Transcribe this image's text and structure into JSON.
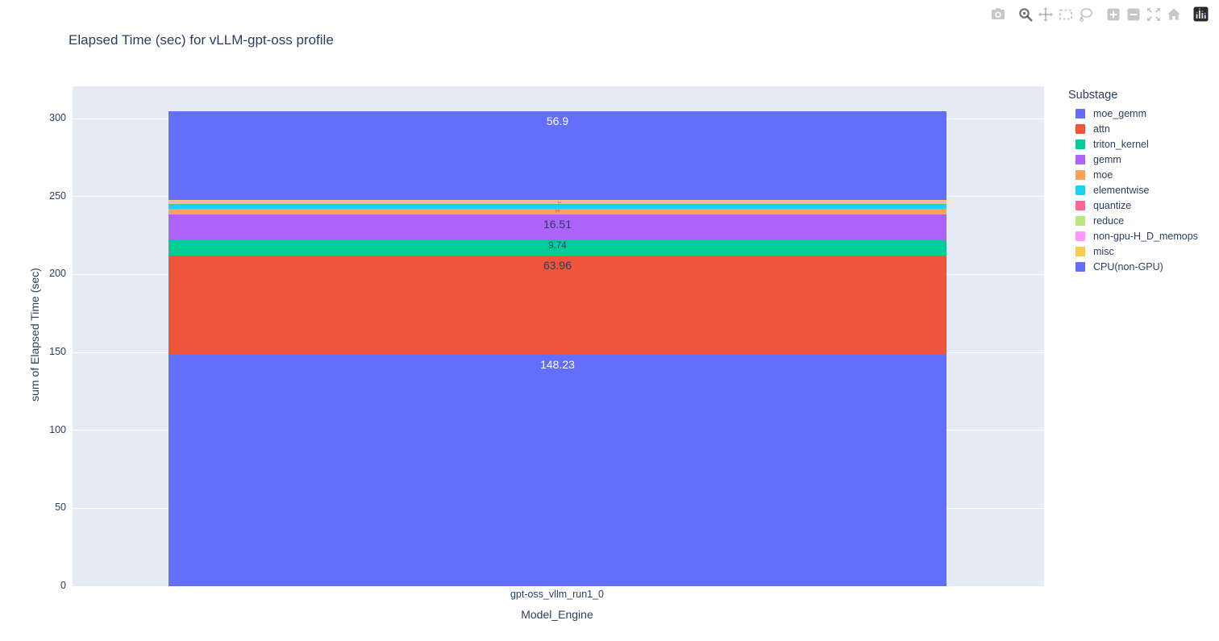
{
  "modebar": {
    "groups": [
      [
        "camera"
      ],
      [
        "zoom",
        "pan",
        "box-select",
        "lasso-select"
      ],
      [
        "zoom-in",
        "zoom-out",
        "autoscale",
        "reset-axes"
      ],
      [
        "plotly-logo"
      ]
    ],
    "active": "zoom"
  },
  "chart_data": {
    "type": "bar",
    "stacked": true,
    "title": "Elapsed Time (sec) for vLLM-gpt-oss profile",
    "xlabel": "Model_Engine",
    "ylabel": "sum of Elapsed Time (sec)",
    "categories": [
      "gpt-oss_vllm_run1_0"
    ],
    "yticks": [
      0,
      50,
      100,
      150,
      200,
      250,
      300
    ],
    "ylim": [
      0,
      320
    ],
    "grid": true,
    "legend_position": "right",
    "legend_title": "Substage",
    "plot_bg": "#E5ECF6",
    "grid_color": "#FFFFFF",
    "text_color": "#2A3F5F",
    "series": [
      {
        "name": "moe_gemm",
        "color": "#636EFA",
        "value": 56.9,
        "label": "56.9",
        "label_color": "#FFFFFF",
        "label_size": "normal"
      },
      {
        "name": "attn",
        "color": "#EF553B",
        "value": 63.96,
        "label": "63.96",
        "label_color": "#2A3F5F",
        "label_size": "normal"
      },
      {
        "name": "triton_kernel",
        "color": "#00CC96",
        "value": 9.74,
        "label": "9.74",
        "label_color": "#2A3F5F",
        "label_size": "small"
      },
      {
        "name": "gemm",
        "color": "#AB63FA",
        "value": 16.51,
        "label": "16.51",
        "label_color": "#2A3F5F",
        "label_size": "normal"
      },
      {
        "name": "moe",
        "color": "#FFA15A",
        "value": 3.8,
        "label": "3.8",
        "label_color": "#2A3F5F",
        "label_size": "micro"
      },
      {
        "name": "elementwise",
        "color": "#19D3F3",
        "value": 2.5,
        "label": null,
        "label_color": null,
        "label_size": null
      },
      {
        "name": "quantize",
        "color": "#FF6692",
        "value": 0.5,
        "label": null,
        "label_color": null,
        "label_size": null
      },
      {
        "name": "reduce",
        "color": "#B6E880",
        "value": 1.0,
        "label": null,
        "label_color": null,
        "label_size": null
      },
      {
        "name": "non-gpu-H_D_memops",
        "color": "#FF97FF",
        "value": 0.4,
        "label": null,
        "label_color": null,
        "label_size": null
      },
      {
        "name": "misc",
        "color": "#FECB52",
        "value": 1.1,
        "label": "1.1",
        "label_color": "#2A3F5F",
        "label_size": "micro-rotated"
      },
      {
        "name": "CPU(non-GPU)",
        "color": "#636EFA",
        "value": 148.23,
        "label": "148.23",
        "label_color": "#FFFFFF",
        "label_size": "normal"
      }
    ],
    "stack_order_bottom_up": [
      "CPU(non-GPU)",
      "attn",
      "triton_kernel",
      "gemm",
      "moe",
      "elementwise",
      "quantize",
      "reduce",
      "non-gpu-H_D_memops",
      "misc",
      "moe_gemm"
    ]
  }
}
